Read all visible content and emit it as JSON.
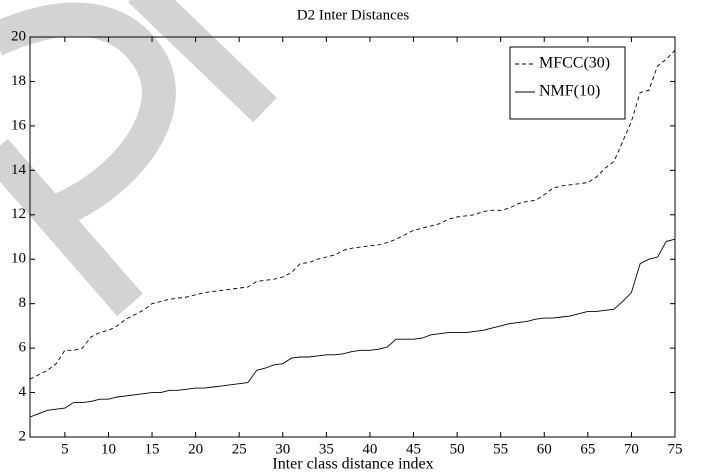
{
  "chart_data": {
    "type": "line",
    "title": "D2 Inter Distances",
    "x_label": "Inter class distance index",
    "x": [
      1,
      2,
      3,
      4,
      5,
      6,
      7,
      8,
      9,
      10,
      11,
      12,
      13,
      14,
      15,
      16,
      17,
      18,
      19,
      20,
      21,
      22,
      23,
      24,
      25,
      26,
      27,
      28,
      29,
      30,
      31,
      32,
      33,
      34,
      35,
      36,
      37,
      38,
      39,
      40,
      41,
      42,
      43,
      44,
      45,
      46,
      47,
      48,
      49,
      50,
      51,
      52,
      53,
      54,
      55,
      56,
      57,
      58,
      59,
      60,
      61,
      62,
      63,
      64,
      65,
      66,
      67,
      68,
      69,
      70,
      71,
      72,
      73,
      74,
      75
    ],
    "series": [
      {
        "name": "MFCC(30)",
        "color": "#000000",
        "linestyle": "dashed",
        "values": [
          4.6,
          4.8,
          5.0,
          5.3,
          5.9,
          5.9,
          6.0,
          6.5,
          6.7,
          6.8,
          7.0,
          7.3,
          7.5,
          7.7,
          8.0,
          8.1,
          8.2,
          8.25,
          8.3,
          8.4,
          8.5,
          8.55,
          8.6,
          8.65,
          8.7,
          8.75,
          9.0,
          9.05,
          9.1,
          9.2,
          9.4,
          9.8,
          9.85,
          10.0,
          10.1,
          10.2,
          10.4,
          10.5,
          10.55,
          10.6,
          10.65,
          10.75,
          10.9,
          11.1,
          11.3,
          11.4,
          11.5,
          11.6,
          11.8,
          11.9,
          11.95,
          12.0,
          12.15,
          12.2,
          12.2,
          12.3,
          12.5,
          12.6,
          12.65,
          12.9,
          13.2,
          13.3,
          13.35,
          13.4,
          13.45,
          13.7,
          14.1,
          14.4,
          15.3,
          16.2,
          17.5,
          17.6,
          18.7,
          19.0,
          19.4
        ]
      },
      {
        "name": "NMF(10)",
        "color": "#000000",
        "linestyle": "solid",
        "values": [
          2.9,
          3.05,
          3.2,
          3.25,
          3.3,
          3.55,
          3.55,
          3.6,
          3.7,
          3.7,
          3.8,
          3.85,
          3.9,
          3.95,
          4.0,
          4.0,
          4.1,
          4.1,
          4.15,
          4.2,
          4.2,
          4.25,
          4.3,
          4.35,
          4.4,
          4.45,
          5.0,
          5.1,
          5.25,
          5.3,
          5.55,
          5.6,
          5.6,
          5.65,
          5.7,
          5.7,
          5.75,
          5.85,
          5.9,
          5.9,
          5.95,
          6.05,
          6.4,
          6.4,
          6.4,
          6.45,
          6.6,
          6.65,
          6.7,
          6.7,
          6.7,
          6.75,
          6.8,
          6.9,
          7.0,
          7.1,
          7.15,
          7.2,
          7.3,
          7.35,
          7.35,
          7.4,
          7.45,
          7.55,
          7.65,
          7.65,
          7.7,
          7.75,
          8.1,
          8.5,
          9.8,
          10.0,
          10.1,
          10.8,
          10.9
        ]
      }
    ],
    "xlim": [
      1,
      75
    ],
    "xticks": [
      5,
      10,
      15,
      20,
      25,
      30,
      35,
      40,
      45,
      50,
      55,
      60,
      65,
      70,
      75
    ],
    "ylim": [
      2,
      20
    ],
    "yticks": [
      2,
      4,
      6,
      8,
      10,
      12,
      14,
      16,
      18,
      20
    ],
    "legend": "upper right",
    "grid": false
  }
}
